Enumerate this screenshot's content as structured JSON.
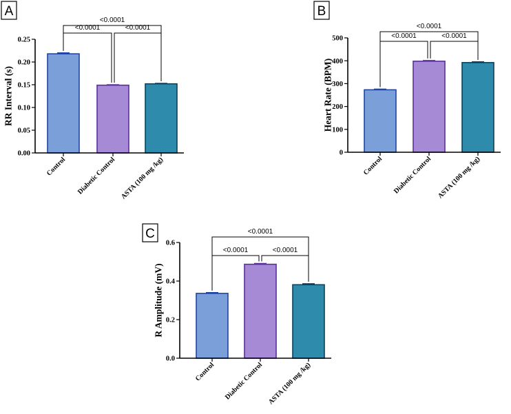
{
  "chart_data": [
    {
      "panel": "A",
      "type": "bar",
      "ylabel": "RR Interval (s)",
      "categories": [
        "Control",
        "Diabetic Control",
        "ASTA (100 mg /kg)"
      ],
      "values": [
        0.218,
        0.149,
        0.152
      ],
      "errors": [
        0.002,
        0.001,
        0.001
      ],
      "ylim": [
        0,
        0.25
      ],
      "yticks": [
        0.0,
        0.05,
        0.1,
        0.15,
        0.2,
        0.25
      ],
      "ytick_labels": [
        "0.00",
        "0.05",
        "0.10",
        "0.15",
        "0.20",
        "0.25"
      ],
      "comparisons": [
        {
          "from": 0,
          "to": 1,
          "label": "<0.0001"
        },
        {
          "from": 1,
          "to": 2,
          "label": "<0.0001"
        },
        {
          "from": 0,
          "to": 2,
          "label": "<0.0001"
        }
      ]
    },
    {
      "panel": "B",
      "type": "bar",
      "ylabel": "Heart Rate (BPM)",
      "categories": [
        "Control",
        "Diabetic Control",
        "ASTA (100 mg /kg)"
      ],
      "values": [
        273,
        398,
        392
      ],
      "errors": [
        3,
        3,
        3
      ],
      "ylim": [
        0,
        500
      ],
      "yticks": [
        0,
        100,
        200,
        300,
        400,
        500
      ],
      "ytick_labels": [
        "0",
        "100",
        "200",
        "300",
        "400",
        "500"
      ],
      "comparisons": [
        {
          "from": 0,
          "to": 1,
          "label": "<0.0001"
        },
        {
          "from": 1,
          "to": 2,
          "label": "<0.0001"
        },
        {
          "from": 0,
          "to": 2,
          "label": "<0.0001"
        }
      ]
    },
    {
      "panel": "C",
      "type": "bar",
      "ylabel": "R Amplitude (mV)",
      "categories": [
        "Control",
        "Diabetic Control",
        "ASTA (100 mg /kg)"
      ],
      "values": [
        0.336,
        0.487,
        0.381
      ],
      "errors": [
        0.004,
        0.004,
        0.005
      ],
      "ylim": [
        0,
        0.6
      ],
      "yticks": [
        0.0,
        0.2,
        0.4,
        0.6
      ],
      "ytick_labels": [
        "0.0",
        "0.2",
        "0.4",
        "0.6"
      ],
      "comparisons": [
        {
          "from": 0,
          "to": 1,
          "label": "<0.0001"
        },
        {
          "from": 1,
          "to": 2,
          "label": "<0.0001"
        },
        {
          "from": 0,
          "to": 2,
          "label": "<0.0001"
        }
      ]
    }
  ],
  "colors": {
    "fills": [
      "#7b9fd9",
      "#a68ad6",
      "#2e8bab"
    ],
    "strokes": [
      "#1f44a3",
      "#5a2e9a",
      "#0d3f5e"
    ]
  }
}
